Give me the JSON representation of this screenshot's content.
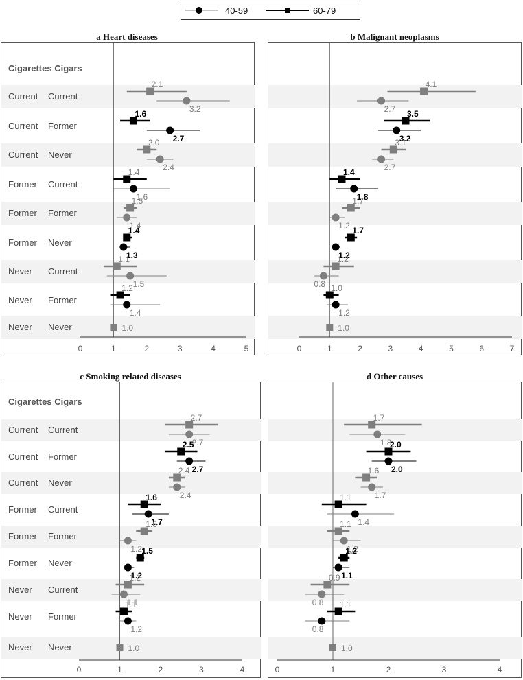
{
  "legend": {
    "items": [
      {
        "label": "40-59",
        "marker": "circle"
      },
      {
        "label": "60-79",
        "marker": "square"
      }
    ]
  },
  "header_a": "Cigarettes   Cigars",
  "header_c": "Cigarettes Cigars",
  "colors": {
    "dark": "#000000",
    "grey": "#7f7f7f",
    "band": "#f2f2f2",
    "refline": "#666666",
    "axis": "#333333"
  },
  "chart_data": [
    {
      "type": "forest",
      "panel_letter": "a",
      "title": "Heart diseases",
      "xlim": [
        0,
        5
      ],
      "ticks": [
        0,
        1,
        2,
        3,
        4,
        5
      ],
      "reference": 1,
      "rows": [
        {
          "cig": "Current",
          "cigar": "Current",
          "hl": false,
          "sq": [
            2.1,
            1.4,
            3.2
          ],
          "ci": [
            3.2,
            2.3,
            4.5
          ],
          "sq_label": "2.1",
          "ci_label": "3.2"
        },
        {
          "cig": "Current",
          "cigar": "Former",
          "hl": true,
          "sq": [
            1.6,
            1.2,
            2.1
          ],
          "ci": [
            2.7,
            2.0,
            3.6
          ],
          "sq_label": "1.6",
          "ci_label": "2.7"
        },
        {
          "cig": "Current",
          "cigar": "Never",
          "hl": false,
          "sq": [
            2.0,
            1.7,
            2.3
          ],
          "ci": [
            2.4,
            2.0,
            2.8
          ],
          "sq_label": "2.0",
          "ci_label": "2.4"
        },
        {
          "cig": "Former",
          "cigar": "Current",
          "hl": false,
          "dark": true,
          "sq": [
            1.4,
            1.0,
            2.0
          ],
          "ci": [
            1.6,
            1.0,
            2.7
          ],
          "sq_label": "1.4",
          "ci_label": "1.6"
        },
        {
          "cig": "Former",
          "cigar": "Former",
          "hl": false,
          "sq": [
            1.5,
            1.3,
            1.7
          ],
          "ci": [
            1.4,
            1.1,
            1.7
          ],
          "sq_label": "1.5",
          "ci_label": "1.4"
        },
        {
          "cig": "Former",
          "cigar": "Never",
          "hl": true,
          "sq": [
            1.4,
            1.3,
            1.55
          ],
          "ci": [
            1.3,
            1.2,
            1.5
          ],
          "sq_label": "1.4",
          "ci_label": "1.3"
        },
        {
          "cig": "Never",
          "cigar": "Current",
          "hl": false,
          "sq": [
            1.1,
            0.7,
            1.7
          ],
          "ci": [
            1.5,
            0.8,
            2.6
          ],
          "sq_label": "1.1",
          "ci_label": "1.5"
        },
        {
          "cig": "Never",
          "cigar": "Former",
          "hl": false,
          "dark": true,
          "sq": [
            1.2,
            0.9,
            1.5
          ],
          "ci": [
            1.4,
            0.9,
            2.4
          ],
          "sq_label": "1.2",
          "ci_label": "1.4"
        },
        {
          "cig": "Never",
          "cigar": "Never",
          "hl": false,
          "ref": true,
          "sq": [
            1.0,
            1.0,
            1.0
          ],
          "sq_label": "1.0"
        }
      ]
    },
    {
      "type": "forest",
      "panel_letter": "b",
      "title": "Malignant neoplasms",
      "xlim": [
        0,
        7
      ],
      "ticks": [
        0,
        1,
        2,
        3,
        4,
        5,
        6,
        7
      ],
      "reference": 1,
      "rows": [
        {
          "hl": false,
          "sq": [
            4.1,
            2.9,
            5.8
          ],
          "ci": [
            2.7,
            1.9,
            3.6
          ],
          "sq_label": "4.1",
          "ci_label": "2.7"
        },
        {
          "hl": true,
          "sq": [
            3.5,
            2.8,
            4.3
          ],
          "ci": [
            3.2,
            2.6,
            4.0
          ],
          "sq_label": "3.5",
          "ci_label": "3.2"
        },
        {
          "hl": false,
          "sq": [
            3.1,
            2.7,
            3.5
          ],
          "ci": [
            2.7,
            2.4,
            3.1
          ],
          "sq_label": "3.1",
          "ci_label": "2.7"
        },
        {
          "hl": true,
          "sq": [
            1.4,
            1.0,
            2.0
          ],
          "ci": [
            1.8,
            1.2,
            2.6
          ],
          "sq_label": "1.4",
          "ci_label": "1.8"
        },
        {
          "hl": false,
          "sq": [
            1.7,
            1.4,
            2.0
          ],
          "ci": [
            1.2,
            1.0,
            1.5
          ],
          "sq_label": "1.7",
          "ci_label": "1.2"
        },
        {
          "hl": true,
          "sq": [
            1.7,
            1.5,
            1.9
          ],
          "ci": [
            1.2,
            1.1,
            1.35
          ],
          "sq_label": "1.7",
          "ci_label": "1.2"
        },
        {
          "hl": false,
          "sq": [
            1.2,
            0.8,
            1.8
          ],
          "ci": [
            0.8,
            0.5,
            1.3
          ],
          "sq_label": "1.2",
          "ci_label": "0.8"
        },
        {
          "hl": false,
          "dark": true,
          "sq": [
            1.0,
            0.8,
            1.3
          ],
          "ci": [
            1.2,
            0.9,
            1.6
          ],
          "sq_label": "1.0",
          "ci_label": "1.2"
        },
        {
          "hl": false,
          "ref": true,
          "sq": [
            1.0,
            1.0,
            1.0
          ],
          "sq_label": "1.0"
        }
      ]
    },
    {
      "type": "forest",
      "panel_letter": "c",
      "title": "Smoking related diseases",
      "xlim": [
        0,
        4
      ],
      "ticks": [
        0,
        1,
        2,
        3,
        4
      ],
      "reference": 1,
      "rows": [
        {
          "cig": "Current",
          "cigar": "Current",
          "hl": false,
          "sq": [
            2.7,
            2.1,
            3.4
          ],
          "ci": [
            2.7,
            2.2,
            3.2
          ],
          "sq_label": "2.7",
          "ci_label": "2.7"
        },
        {
          "cig": "Current",
          "cigar": "Former",
          "hl": true,
          "sq": [
            2.5,
            2.1,
            2.9
          ],
          "ci": [
            2.7,
            2.4,
            3.1
          ],
          "sq_label": "2.5",
          "ci_label": "2.7"
        },
        {
          "cig": "Current",
          "cigar": "Never",
          "hl": false,
          "sq": [
            2.4,
            2.2,
            2.6
          ],
          "ci": [
            2.4,
            2.2,
            2.6
          ],
          "sq_label": "2.4",
          "ci_label": "2.4"
        },
        {
          "cig": "Former",
          "cigar": "Current",
          "hl": true,
          "sq": [
            1.6,
            1.2,
            2.0
          ],
          "ci": [
            1.7,
            1.3,
            2.2
          ],
          "sq_label": "1.6",
          "ci_label": "1.7"
        },
        {
          "cig": "Former",
          "cigar": "Former",
          "hl": false,
          "sq": [
            1.6,
            1.4,
            1.8
          ],
          "ci": [
            1.2,
            1.0,
            1.4
          ],
          "sq_label": "1.6",
          "ci_label": "1.2"
        },
        {
          "cig": "Former",
          "cigar": "Never",
          "hl": true,
          "sq": [
            1.5,
            1.4,
            1.6
          ],
          "ci": [
            1.2,
            1.1,
            1.35
          ],
          "sq_label": "1.5",
          "ci_label": "1.2"
        },
        {
          "cig": "Never",
          "cigar": "Current",
          "hl": false,
          "sq": [
            1.2,
            0.9,
            1.6
          ],
          "ci": [
            1.1,
            0.8,
            1.5
          ],
          "sq_label": "1.2",
          "ci_label": "1.1"
        },
        {
          "cig": "Never",
          "cigar": "Former",
          "hl": false,
          "dark": true,
          "sq": [
            1.1,
            0.9,
            1.3
          ],
          "ci": [
            1.2,
            1.0,
            1.4
          ],
          "sq_label": "1.1",
          "ci_label": "1.2"
        },
        {
          "cig": "Never",
          "cigar": "Never",
          "hl": false,
          "ref": true,
          "sq": [
            1.0,
            1.0,
            1.0
          ],
          "sq_label": "1.0"
        }
      ]
    },
    {
      "type": "forest",
      "panel_letter": "d",
      "title": "Other causes",
      "xlim": [
        0,
        4
      ],
      "ticks": [
        0,
        1,
        2,
        3,
        4
      ],
      "reference": 1,
      "rows": [
        {
          "hl": false,
          "sq": [
            1.7,
            1.2,
            2.6
          ],
          "ci": [
            1.8,
            1.3,
            2.3
          ],
          "sq_label": "1.7",
          "ci_label": "1.8"
        },
        {
          "hl": true,
          "sq": [
            2.0,
            1.6,
            2.4
          ],
          "ci": [
            2.0,
            1.7,
            2.5
          ],
          "sq_label": "2.0",
          "ci_label": "2.0"
        },
        {
          "hl": false,
          "sq": [
            1.6,
            1.4,
            1.8
          ],
          "ci": [
            1.7,
            1.5,
            1.9
          ],
          "sq_label": "1.6",
          "ci_label": "1.7"
        },
        {
          "hl": false,
          "dark": true,
          "sq": [
            1.1,
            0.8,
            1.6
          ],
          "ci": [
            1.4,
            0.9,
            2.1
          ],
          "sq_label": "1.1",
          "ci_label": "1.4"
        },
        {
          "hl": false,
          "sq": [
            1.1,
            0.9,
            1.3
          ],
          "ci": [
            1.2,
            1.0,
            1.5
          ],
          "sq_label": "1.1",
          "ci_label": "1.2"
        },
        {
          "hl": true,
          "sq": [
            1.2,
            1.1,
            1.3
          ],
          "ci": [
            1.1,
            1.0,
            1.3
          ],
          "sq_label": "1.2",
          "ci_label": "1.1"
        },
        {
          "hl": false,
          "sq": [
            0.9,
            0.6,
            1.3
          ],
          "ci": [
            0.8,
            0.5,
            1.2
          ],
          "sq_label": "0.9",
          "ci_label": "0.8"
        },
        {
          "hl": false,
          "dark": true,
          "sq": [
            1.1,
            0.9,
            1.4
          ],
          "ci": [
            0.8,
            0.5,
            1.3
          ],
          "sq_label": "1.1",
          "ci_label": "0.8"
        },
        {
          "hl": false,
          "ref": true,
          "sq": [
            1.0,
            1.0,
            1.0
          ],
          "sq_label": "1.0"
        }
      ]
    }
  ]
}
